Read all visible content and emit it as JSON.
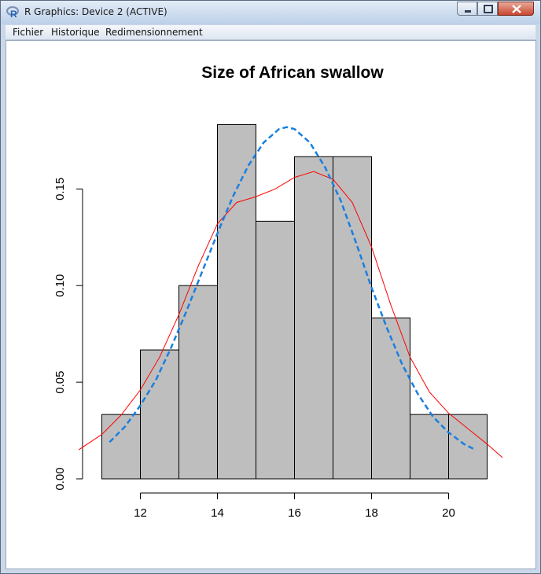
{
  "window": {
    "title": "R Graphics: Device 2 (ACTIVE)"
  },
  "menu": {
    "items": [
      "Fichier",
      "Historique",
      "Redimensionnement"
    ]
  },
  "icons": {
    "app": "r-logo-icon",
    "minimize": "minimize-icon",
    "maximize": "maximize-icon",
    "close": "close-icon"
  },
  "colors": {
    "bar_fill": "#bebebe",
    "bar_stroke": "#000000",
    "kde_line": "#ff0000",
    "normal_line": "#1a7fe0",
    "close_button": "#c8462f"
  },
  "chart_data": {
    "type": "bar",
    "title": "Size of African swallow",
    "xlabel": "",
    "ylabel": "",
    "bins": [
      [
        11,
        12
      ],
      [
        12,
        13
      ],
      [
        13,
        14
      ],
      [
        14,
        15
      ],
      [
        15,
        16
      ],
      [
        16,
        17
      ],
      [
        17,
        18
      ],
      [
        18,
        19
      ],
      [
        19,
        20
      ],
      [
        20,
        21
      ]
    ],
    "values": [
      0.0333,
      0.0667,
      0.1,
      0.1833,
      0.1333,
      0.1667,
      0.1667,
      0.0833,
      0.0333,
      0.0333
    ],
    "xlim": [
      10.5,
      21.5
    ],
    "ylim": [
      0,
      0.19
    ],
    "x_ticks": [
      12,
      14,
      16,
      18,
      20
    ],
    "y_ticks": [
      0.0,
      0.05,
      0.1,
      0.15
    ],
    "y_tick_labels": [
      "0.00",
      "0.05",
      "0.10",
      "0.15"
    ],
    "grid": false,
    "series": [
      {
        "type": "line",
        "style": "solid",
        "x": [
          10.4,
          11.0,
          11.5,
          12.0,
          12.5,
          13.0,
          13.5,
          14.0,
          14.5,
          15.0,
          15.5,
          16.0,
          16.5,
          17.0,
          17.5,
          18.0,
          18.5,
          19.0,
          19.5,
          20.0,
          20.5,
          21.0,
          21.4
        ],
        "y": [
          0.015,
          0.023,
          0.033,
          0.046,
          0.063,
          0.085,
          0.11,
          0.132,
          0.143,
          0.146,
          0.15,
          0.156,
          0.159,
          0.155,
          0.143,
          0.12,
          0.09,
          0.063,
          0.045,
          0.034,
          0.026,
          0.018,
          0.011
        ]
      },
      {
        "type": "line",
        "style": "dashed",
        "x": [
          11.2,
          11.6,
          12.0,
          12.4,
          12.8,
          13.2,
          13.6,
          14.0,
          14.4,
          14.8,
          15.2,
          15.6,
          15.8,
          16.0,
          16.4,
          16.8,
          17.2,
          17.6,
          18.0,
          18.4,
          18.8,
          19.2,
          19.6,
          20.0,
          20.4,
          20.7
        ],
        "y": [
          0.019,
          0.027,
          0.038,
          0.051,
          0.068,
          0.087,
          0.107,
          0.127,
          0.146,
          0.162,
          0.174,
          0.181,
          0.182,
          0.181,
          0.174,
          0.161,
          0.144,
          0.122,
          0.099,
          0.078,
          0.059,
          0.044,
          0.032,
          0.024,
          0.018,
          0.015
        ]
      }
    ]
  }
}
